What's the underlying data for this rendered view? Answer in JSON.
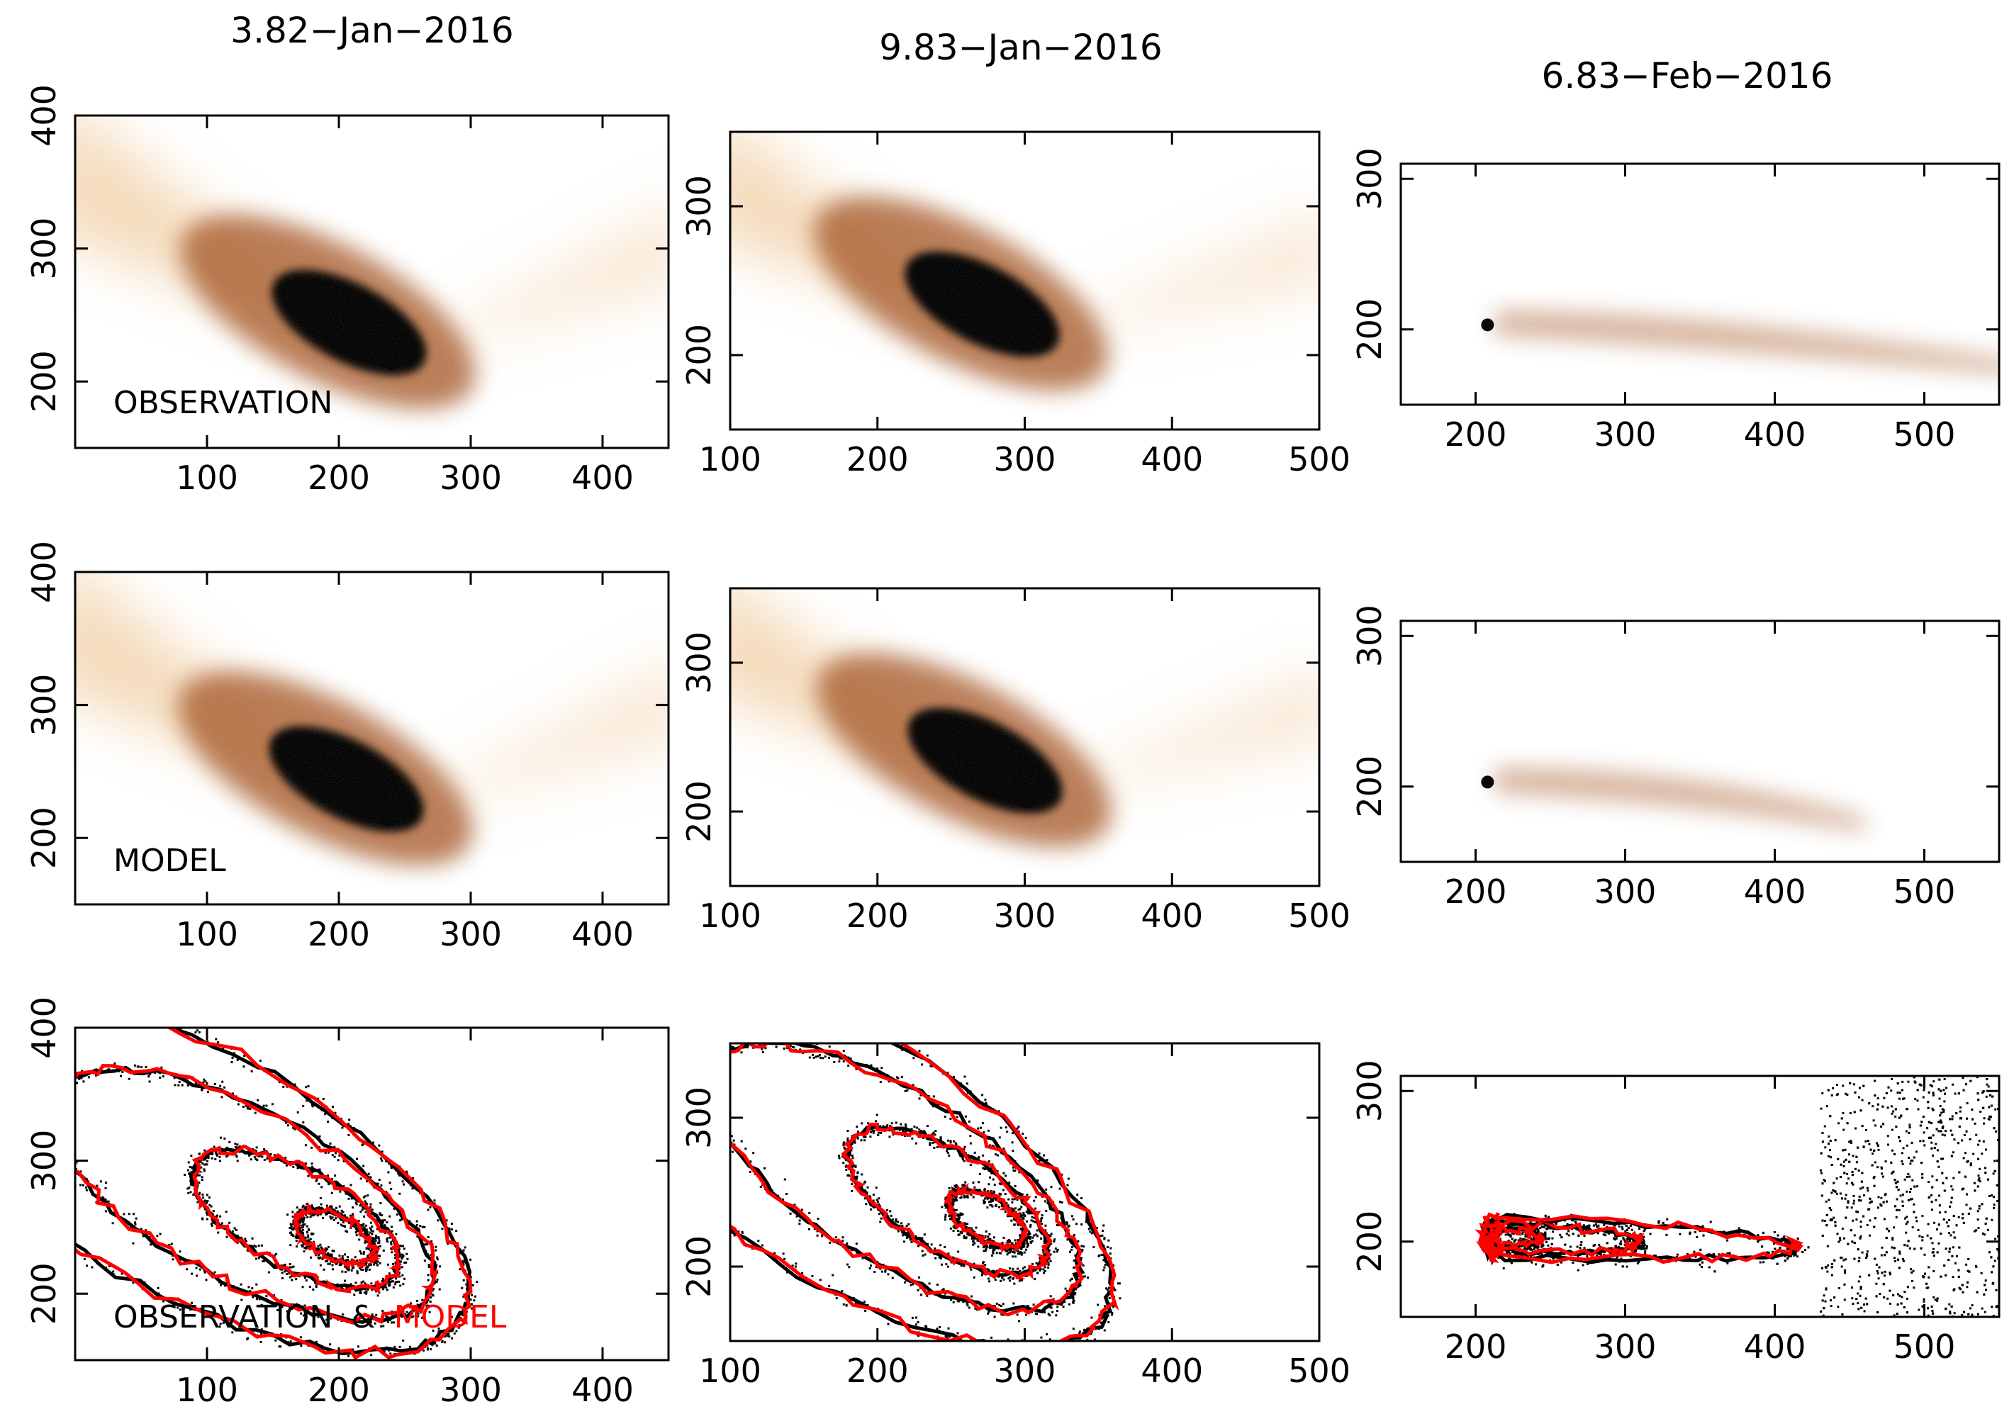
{
  "figure": {
    "columns": [
      {
        "date": "3.82−Jan−2016"
      },
      {
        "date": "9.83−Jan−2016"
      },
      {
        "date": "6.83−Feb−2016"
      }
    ],
    "row_labels": {
      "observation": "OBSERVATION",
      "model": "MODEL",
      "combined_prefix": "OBSERVATION",
      "combined_amp": "&",
      "combined_model": "MODEL"
    }
  },
  "colors": {
    "frame": "#000000",
    "dust_dark": "#000000",
    "dust_mid": "#a0501a",
    "dust_light": "#f2d2aa",
    "observation_contour": "#000000",
    "model_contour": "#ff0000"
  },
  "chart_data": [
    {
      "type": "heatmap",
      "row": "observation",
      "column": "3.82−Jan−2016",
      "xlim": [
        0,
        450
      ],
      "ylim": [
        150,
        400
      ],
      "xticks": [
        100,
        200,
        300,
        400
      ],
      "yticks": [
        200,
        300,
        400
      ],
      "nucleus": [
        240,
        215
      ]
    },
    {
      "type": "heatmap",
      "row": "observation",
      "column": "9.83−Jan−2016",
      "xlim": [
        100,
        500
      ],
      "ylim": [
        150,
        350
      ],
      "xticks": [
        100,
        200,
        300,
        400,
        500
      ],
      "yticks": [
        200,
        300
      ],
      "nucleus": [
        300,
        208
      ]
    },
    {
      "type": "heatmap",
      "row": "observation",
      "column": "6.83−Feb−2016",
      "xlim": [
        150,
        550
      ],
      "ylim": [
        150,
        310
      ],
      "xticks": [
        200,
        300,
        400,
        500
      ],
      "yticks": [
        200,
        300
      ],
      "nucleus": [
        208,
        203
      ]
    },
    {
      "type": "heatmap",
      "row": "model",
      "column": "3.82−Jan−2016",
      "xlim": [
        0,
        450
      ],
      "ylim": [
        150,
        400
      ],
      "xticks": [
        100,
        200,
        300,
        400
      ],
      "yticks": [
        200,
        300,
        400
      ],
      "nucleus": [
        238,
        215
      ]
    },
    {
      "type": "heatmap",
      "row": "model",
      "column": "9.83−Jan−2016",
      "xlim": [
        100,
        500
      ],
      "ylim": [
        150,
        350
      ],
      "xticks": [
        100,
        200,
        300,
        400,
        500
      ],
      "yticks": [
        200,
        300
      ],
      "nucleus": [
        302,
        208
      ]
    },
    {
      "type": "heatmap",
      "row": "model",
      "column": "6.83−Feb−2016",
      "xlim": [
        150,
        550
      ],
      "ylim": [
        150,
        310
      ],
      "xticks": [
        200,
        300,
        400,
        500
      ],
      "yticks": [
        200,
        300
      ],
      "nucleus": [
        208,
        203
      ]
    },
    {
      "type": "contour",
      "row": "observation & model",
      "column": "3.82−Jan−2016",
      "xlim": [
        0,
        450
      ],
      "ylim": [
        150,
        400
      ],
      "xticks": [
        100,
        200,
        300,
        400
      ],
      "yticks": [
        200,
        300,
        400
      ],
      "series": [
        {
          "name": "OBSERVATION",
          "color": "#000000"
        },
        {
          "name": "MODEL",
          "color": "#ff0000"
        }
      ]
    },
    {
      "type": "contour",
      "row": "observation & model",
      "column": "9.83−Jan−2016",
      "xlim": [
        100,
        500
      ],
      "ylim": [
        150,
        350
      ],
      "xticks": [
        100,
        200,
        300,
        400,
        500
      ],
      "yticks": [
        200,
        300
      ],
      "series": [
        {
          "name": "OBSERVATION",
          "color": "#000000"
        },
        {
          "name": "MODEL",
          "color": "#ff0000"
        }
      ]
    },
    {
      "type": "contour",
      "row": "observation & model",
      "column": "6.83−Feb−2016",
      "xlim": [
        150,
        550
      ],
      "ylim": [
        150,
        310
      ],
      "xticks": [
        200,
        300,
        400,
        500
      ],
      "yticks": [
        200,
        300
      ],
      "series": [
        {
          "name": "OBSERVATION",
          "color": "#000000"
        },
        {
          "name": "MODEL",
          "color": "#ff0000"
        }
      ]
    }
  ]
}
